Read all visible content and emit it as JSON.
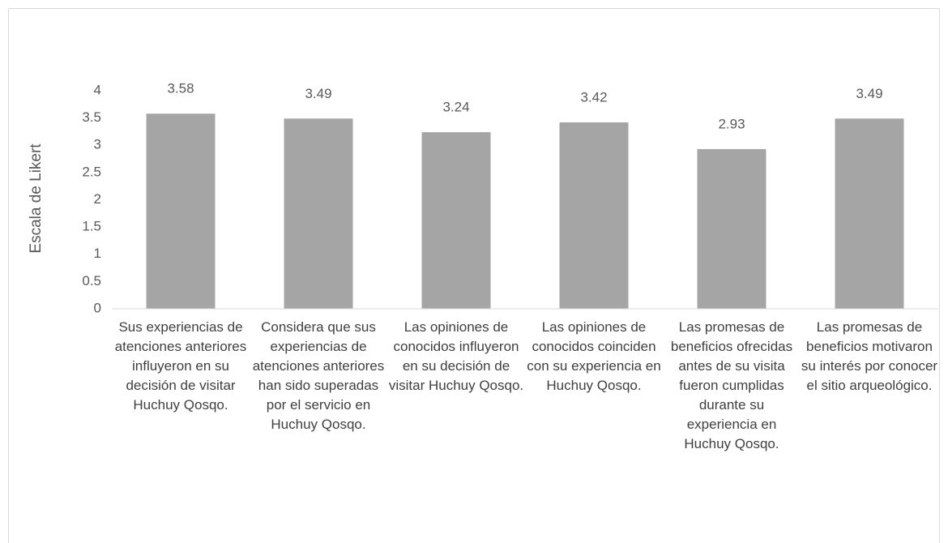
{
  "chart_data": {
    "type": "bar",
    "y_label": "Escala de Likert",
    "categories": [
      "Sus experiencias de atenciones anteriores influyeron en su decisión de visitar Huchuy Qosqo.",
      "Considera que sus experiencias de atenciones anteriores han sido superadas por el servicio en Huchuy Qosqo.",
      "Las opiniones de conocidos influyeron en su decisión de visitar Huchuy Qosqo.",
      "Las opiniones de conocidos coinciden con su experiencia en Huchuy Qosqo.",
      "Las promesas de beneficios ofrecidas antes de su visita fueron cumplidas durante su experiencia en Huchuy Qosqo.",
      "Las promesas de beneficios motivaron su interés por conocer el sitio arqueológico."
    ],
    "values": [
      3.58,
      3.49,
      3.24,
      3.42,
      2.93,
      3.49
    ],
    "color": "#a5a5a5",
    "ylim": [
      0,
      4
    ],
    "yticks": [
      0,
      0.5,
      1,
      1.5,
      2,
      2.5,
      3,
      3.5,
      4
    ],
    "grid": false
  }
}
